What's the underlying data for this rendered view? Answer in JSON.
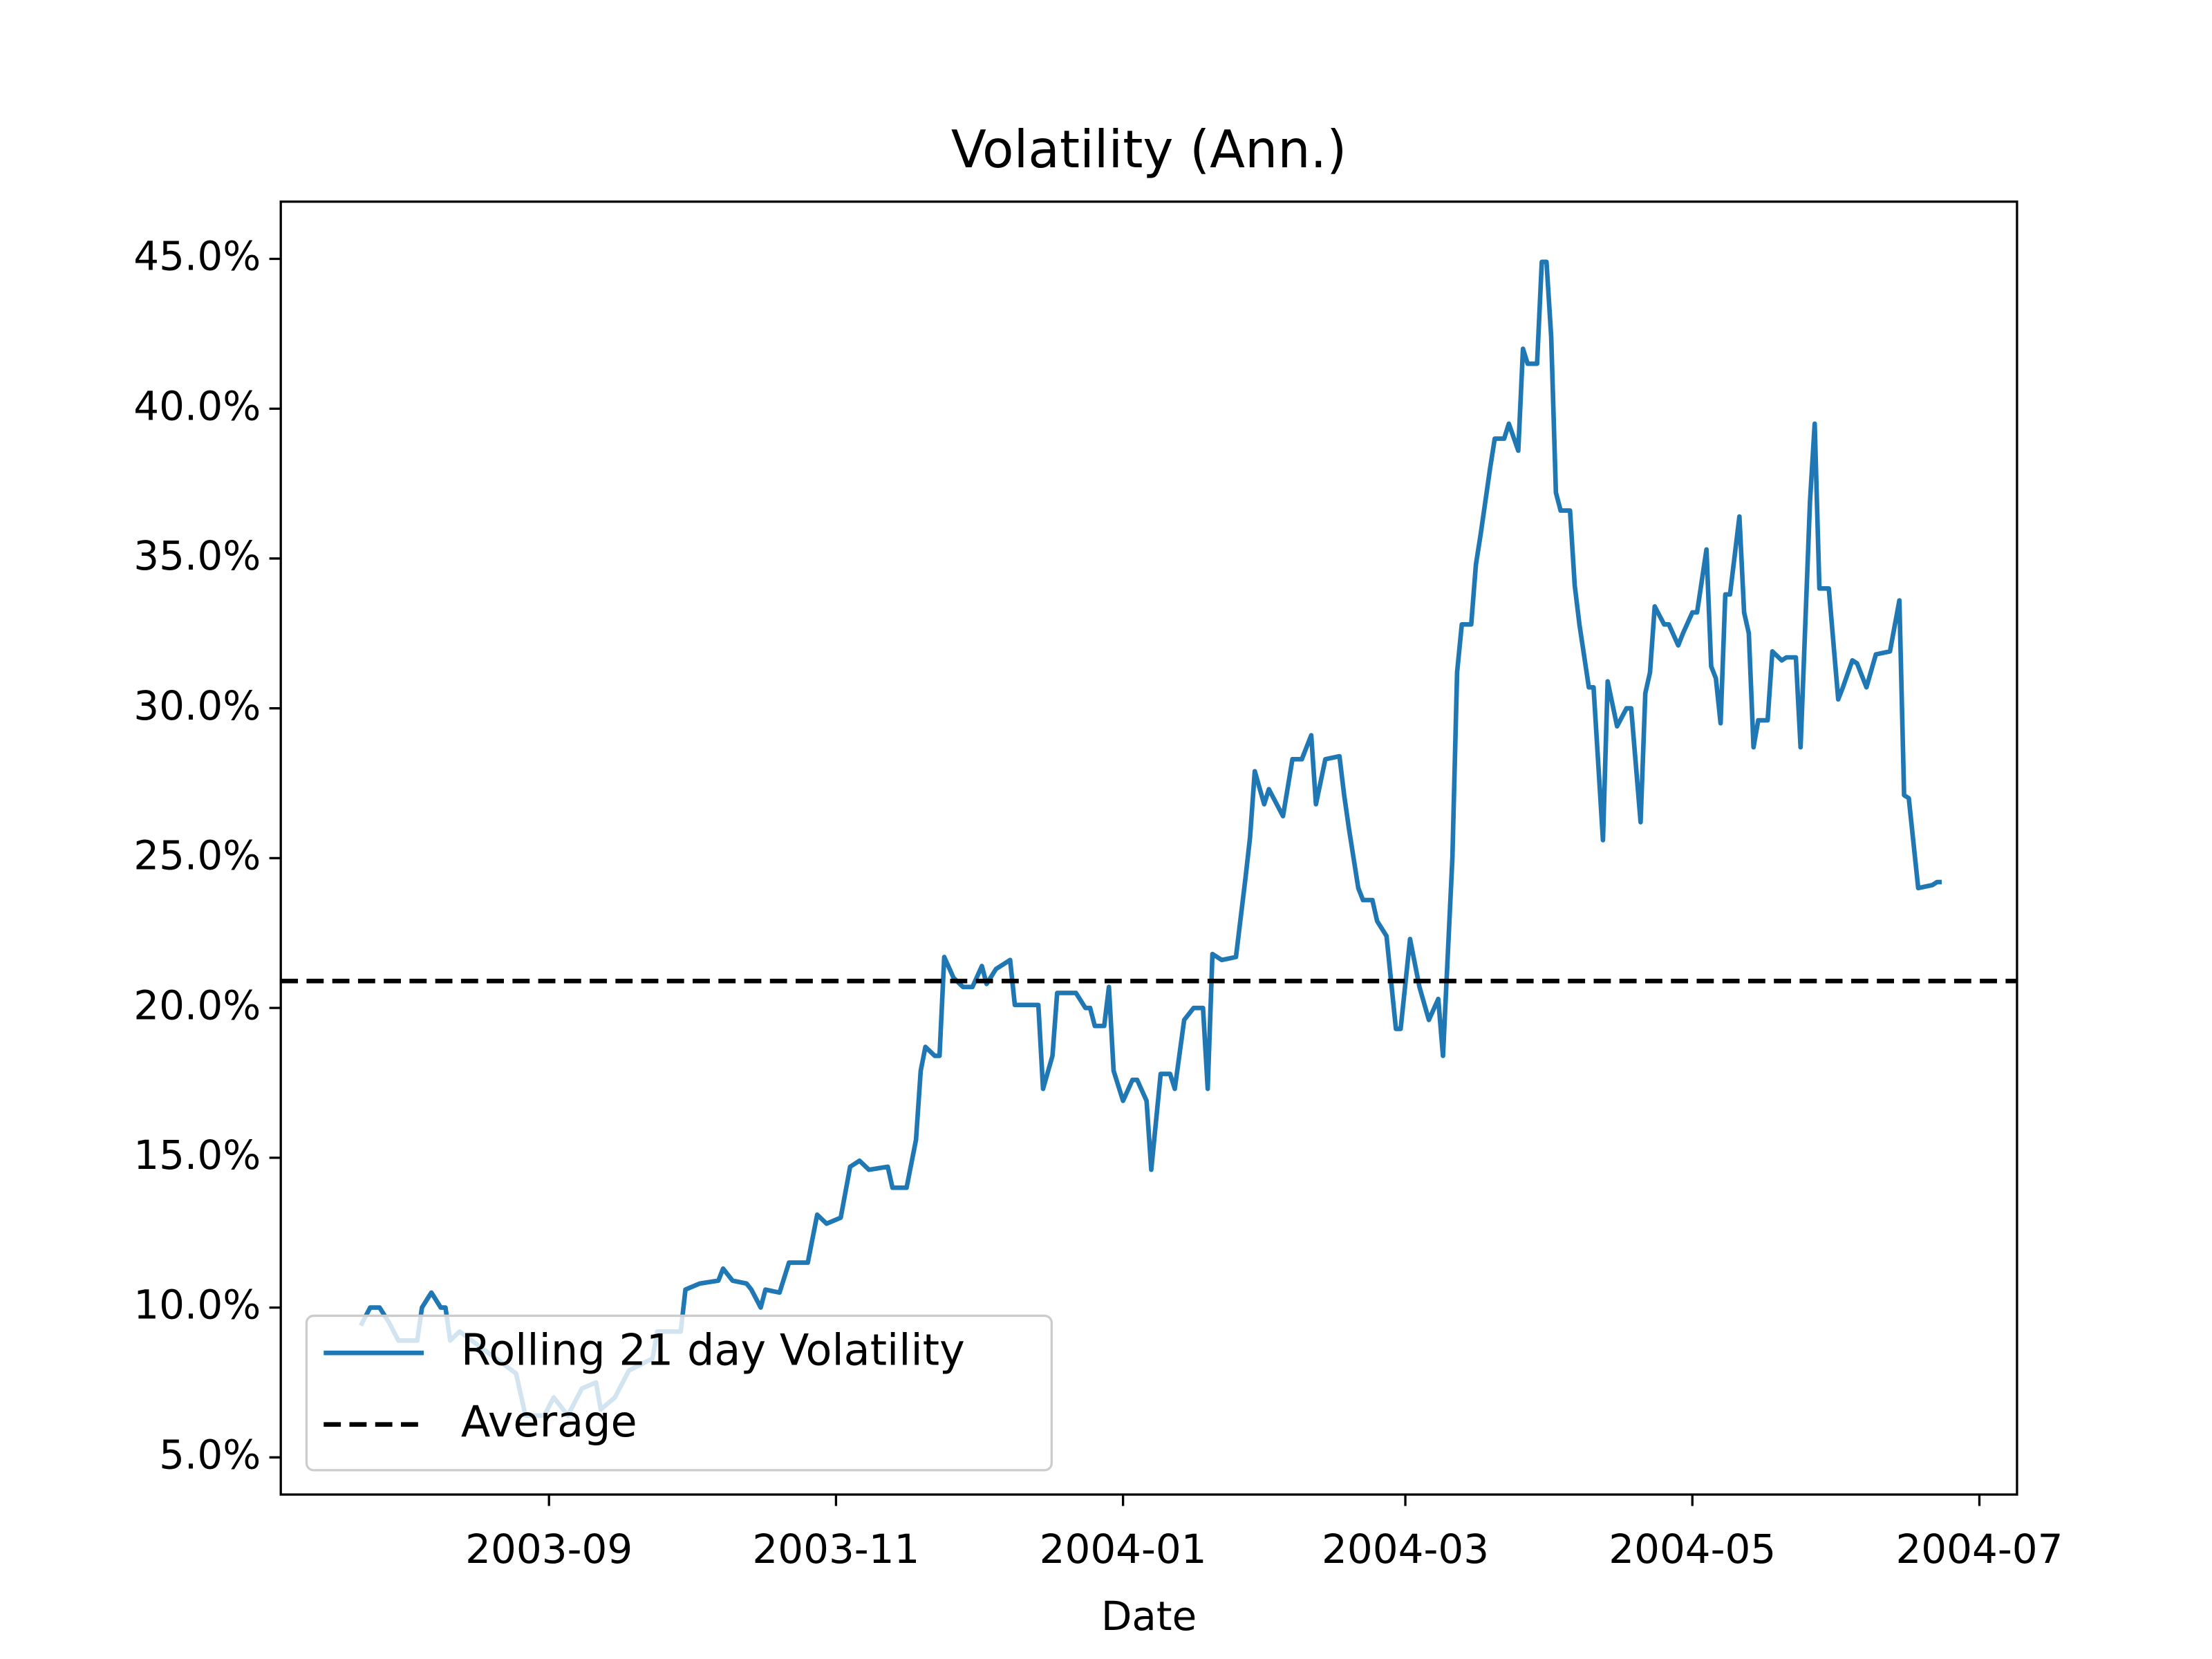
{
  "chart_data": {
    "type": "line",
    "title": "Volatility (Ann.)",
    "x_label": "Date",
    "x": [
      "2003-07-23",
      "2003-07-25",
      "2003-07-27",
      "2003-07-29",
      "2003-07-31",
      "2003-08-04",
      "2003-08-05",
      "2003-08-07",
      "2003-08-09",
      "2003-08-10",
      "2003-08-11",
      "2003-08-13",
      "2003-08-19",
      "2003-08-25",
      "2003-08-27",
      "2003-08-31",
      "2003-09-02",
      "2003-09-05",
      "2003-09-08",
      "2003-09-11",
      "2003-09-12",
      "2003-09-15",
      "2003-09-18",
      "2003-09-23",
      "2003-09-24",
      "2003-09-29",
      "2003-09-30",
      "2003-10-03",
      "2003-10-07",
      "2003-10-08",
      "2003-10-10",
      "2003-10-13",
      "2003-10-14",
      "2003-10-16",
      "2003-10-17",
      "2003-10-20",
      "2003-10-22",
      "2003-10-26",
      "2003-10-28",
      "2003-10-30",
      "2003-11-02",
      "2003-11-04",
      "2003-11-06",
      "2003-11-08",
      "2003-11-12",
      "2003-11-13",
      "2003-11-16",
      "2003-11-18",
      "2003-11-19",
      "2003-11-20",
      "2003-11-22",
      "2003-11-23",
      "2003-11-24",
      "2003-11-26",
      "2003-11-28",
      "2003-11-30",
      "2003-12-02",
      "2003-12-03",
      "2003-12-05",
      "2003-12-08",
      "2003-12-09",
      "2003-12-14",
      "2003-12-15",
      "2003-12-17",
      "2003-12-18",
      "2003-12-22",
      "2003-12-24",
      "2003-12-25",
      "2003-12-26",
      "2003-12-28",
      "2003-12-29",
      "2003-12-30",
      "2004-01-01",
      "2004-01-03",
      "2004-01-04",
      "2004-01-06",
      "2004-01-07",
      "2004-01-09",
      "2004-01-11",
      "2004-01-12",
      "2004-01-14",
      "2004-01-16",
      "2004-01-18",
      "2004-01-19",
      "2004-01-20",
      "2004-01-22",
      "2004-01-25",
      "2004-01-27",
      "2004-01-28",
      "2004-01-29",
      "2004-01-31",
      "2004-02-01",
      "2004-02-04",
      "2004-02-06",
      "2004-02-08",
      "2004-02-10",
      "2004-02-11",
      "2004-02-13",
      "2004-02-16",
      "2004-02-17",
      "2004-02-18",
      "2004-02-20",
      "2004-02-21",
      "2004-02-23",
      "2004-02-24",
      "2004-02-26",
      "2004-02-28",
      "2004-02-29",
      "2004-03-02",
      "2004-03-04",
      "2004-03-06",
      "2004-03-08",
      "2004-03-09",
      "2004-03-11",
      "2004-03-12",
      "2004-03-13",
      "2004-03-15",
      "2004-03-16",
      "2004-03-17",
      "2004-03-19",
      "2004-03-20",
      "2004-03-22",
      "2004-03-23",
      "2004-03-25",
      "2004-03-26",
      "2004-03-27",
      "2004-03-29",
      "2004-03-30",
      "2004-03-31",
      "2004-04-01",
      "2004-04-02",
      "2004-04-03",
      "2004-04-05",
      "2004-04-06",
      "2004-04-07",
      "2004-04-09",
      "2004-04-10",
      "2004-04-12",
      "2004-04-13",
      "2004-04-15",
      "2004-04-17",
      "2004-04-18",
      "2004-04-20",
      "2004-04-21",
      "2004-04-22",
      "2004-04-23",
      "2004-04-25",
      "2004-04-26",
      "2004-04-28",
      "2004-04-29",
      "2004-05-01",
      "2004-05-02",
      "2004-05-04",
      "2004-05-05",
      "2004-05-06",
      "2004-05-07",
      "2004-05-08",
      "2004-05-09",
      "2004-05-11",
      "2004-05-12",
      "2004-05-13",
      "2004-05-14",
      "2004-05-15",
      "2004-05-17",
      "2004-05-18",
      "2004-05-20",
      "2004-05-21",
      "2004-05-23",
      "2004-05-24",
      "2004-05-26",
      "2004-05-27",
      "2004-05-28",
      "2004-05-30",
      "2004-06-01",
      "2004-06-02",
      "2004-06-04",
      "2004-06-05",
      "2004-06-07",
      "2004-06-09",
      "2004-06-12",
      "2004-06-14",
      "2004-06-15",
      "2004-06-16",
      "2004-06-18",
      "2004-06-21",
      "2004-06-22",
      "2004-06-23"
    ],
    "series": [
      {
        "name": "Rolling 21 day Volatility",
        "color": "#1f77b4",
        "values": [
          9.4,
          10.0,
          10.0,
          9.5,
          8.9,
          8.9,
          10.0,
          10.5,
          10.0,
          10.0,
          8.9,
          9.2,
          8.5,
          7.8,
          6.4,
          6.4,
          7.0,
          6.4,
          7.3,
          7.5,
          6.6,
          7.0,
          7.9,
          8.3,
          9.2,
          9.2,
          10.6,
          10.8,
          10.9,
          11.3,
          10.9,
          10.8,
          10.6,
          10.0,
          10.6,
          10.5,
          11.5,
          11.5,
          13.1,
          12.8,
          13.0,
          14.7,
          14.9,
          14.6,
          14.7,
          14.0,
          14.0,
          15.6,
          17.9,
          18.7,
          18.4,
          18.4,
          21.7,
          21.0,
          20.7,
          20.7,
          21.4,
          20.8,
          21.3,
          21.6,
          20.1,
          20.1,
          17.3,
          18.4,
          20.5,
          20.5,
          20.0,
          20.0,
          19.4,
          19.4,
          20.7,
          17.9,
          16.9,
          17.6,
          17.6,
          16.9,
          14.6,
          17.8,
          17.8,
          17.3,
          19.6,
          20.0,
          20.0,
          17.3,
          21.8,
          21.6,
          21.7,
          24.3,
          25.7,
          27.9,
          26.8,
          27.3,
          26.4,
          28.3,
          28.3,
          29.1,
          26.8,
          28.3,
          28.4,
          27.1,
          26.0,
          24.0,
          23.6,
          23.6,
          22.9,
          22.4,
          19.3,
          19.3,
          22.3,
          20.7,
          19.6,
          20.3,
          18.4,
          25.0,
          31.2,
          32.8,
          32.8,
          34.8,
          35.8,
          38.0,
          39.0,
          39.0,
          39.5,
          38.6,
          42.0,
          41.5,
          41.5,
          44.9,
          44.9,
          42.4,
          37.2,
          36.6,
          36.6,
          34.1,
          32.8,
          30.7,
          30.7,
          25.6,
          30.9,
          29.4,
          30.0,
          30.0,
          26.2,
          30.5,
          31.2,
          33.4,
          32.8,
          32.8,
          32.1,
          32.5,
          33.2,
          33.2,
          35.3,
          31.4,
          31.0,
          29.5,
          33.8,
          33.8,
          36.4,
          33.2,
          32.5,
          28.7,
          29.6,
          29.6,
          31.9,
          31.6,
          31.7,
          31.7,
          28.7,
          36.9,
          39.5,
          34.0,
          34.0,
          30.3,
          30.7,
          31.6,
          31.5,
          30.7,
          31.8,
          31.9,
          33.6,
          27.1,
          27.0,
          24.0,
          24.1,
          24.2,
          24.2
        ]
      }
    ],
    "average": {
      "name": "Average",
      "value": 20.9,
      "color": "#000000",
      "style": "dashed"
    },
    "xlim": [
      "2003-07-06",
      "2004-07-09"
    ],
    "xticks": [
      "2003-09",
      "2003-11",
      "2004-01",
      "2004-03",
      "2004-05",
      "2004-07"
    ],
    "ylim": [
      3.76,
      46.91
    ],
    "yticks": [
      {
        "value": 5,
        "label": "5.0%"
      },
      {
        "value": 10,
        "label": "10.0%"
      },
      {
        "value": 15,
        "label": "15.0%"
      },
      {
        "value": 20,
        "label": "20.0%"
      },
      {
        "value": 25,
        "label": "25.0%"
      },
      {
        "value": 30,
        "label": "30.0%"
      },
      {
        "value": 35,
        "label": "35.0%"
      },
      {
        "value": 40,
        "label": "40.0%"
      },
      {
        "value": 45,
        "label": "45.0%"
      }
    ],
    "grid": false,
    "legend": "lower left"
  }
}
